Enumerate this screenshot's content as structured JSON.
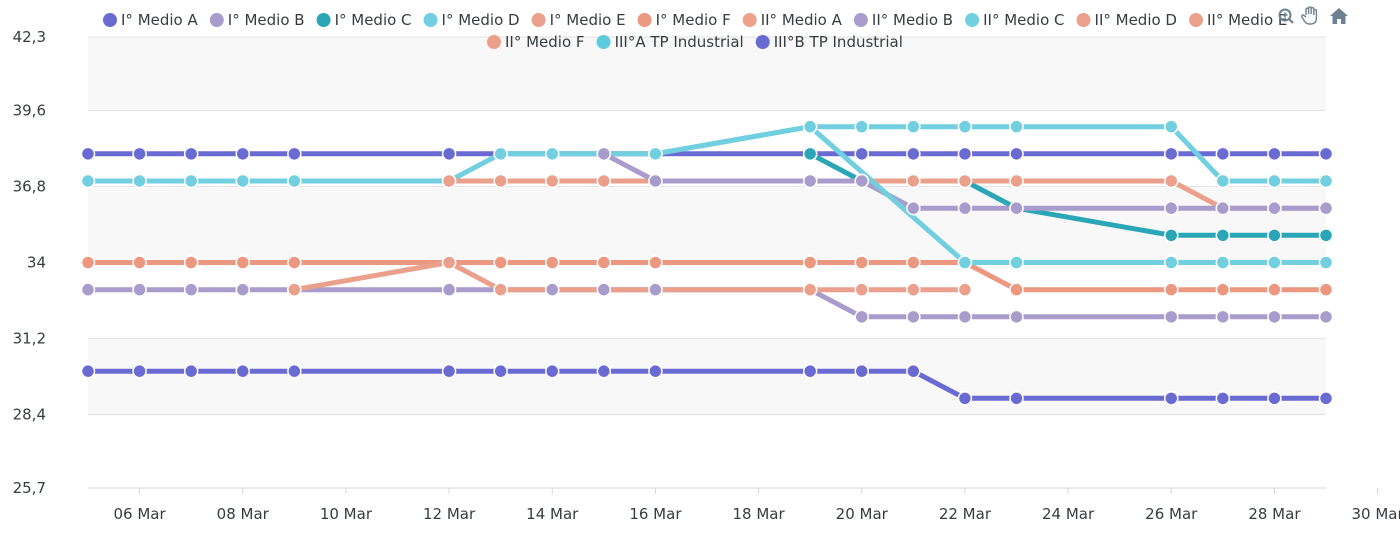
{
  "chart_data": {
    "type": "line",
    "ylim": [
      25.7,
      42.3
    ],
    "y_ticks": [
      "42,3",
      "39,6",
      "36,8",
      "34",
      "31,2",
      "28,4",
      "25,7"
    ],
    "y_tick_values": [
      42.3,
      39.6,
      36.8,
      34.0,
      31.2,
      28.4,
      25.7
    ],
    "x_ticks": [
      "06 Mar",
      "08 Mar",
      "10 Mar",
      "12 Mar",
      "14 Mar",
      "16 Mar",
      "18 Mar",
      "20 Mar",
      "22 Mar",
      "24 Mar",
      "26 Mar",
      "28 Mar",
      "30 Mar"
    ],
    "x_tick_days": [
      6,
      8,
      10,
      12,
      14,
      16,
      18,
      20,
      22,
      24,
      26,
      28,
      30
    ],
    "x_range_days": [
      5,
      29
    ],
    "grid": "horizontal bands",
    "legend": "top",
    "series": [
      {
        "name": "I° Medio A",
        "color": "#6a6ad3",
        "points": [
          [
            5,
            38
          ],
          [
            6,
            38
          ],
          [
            7,
            38
          ],
          [
            8,
            38
          ],
          [
            9,
            38
          ],
          [
            12,
            38
          ],
          [
            13,
            38
          ],
          [
            14,
            38
          ],
          [
            15,
            38
          ],
          [
            16,
            38
          ],
          [
            19,
            38
          ],
          [
            20,
            38
          ],
          [
            21,
            38
          ],
          [
            22,
            38
          ],
          [
            23,
            38
          ],
          [
            26,
            38
          ],
          [
            27,
            38
          ],
          [
            28,
            38
          ],
          [
            29,
            38
          ]
        ]
      },
      {
        "name": "I° Medio B",
        "color": "#a89ccc",
        "points": [
          [
            5,
            33
          ],
          [
            6,
            33
          ],
          [
            7,
            33
          ],
          [
            8,
            33
          ],
          [
            9,
            33
          ],
          [
            12,
            33
          ],
          [
            13,
            33
          ],
          [
            14,
            33
          ],
          [
            15,
            33
          ],
          [
            16,
            33
          ],
          [
            19,
            33
          ],
          [
            20,
            32
          ],
          [
            21,
            32
          ],
          [
            22,
            32
          ],
          [
            23,
            32
          ],
          [
            26,
            32
          ],
          [
            27,
            32
          ],
          [
            28,
            32
          ],
          [
            29,
            32
          ]
        ]
      },
      {
        "name": "I° Medio C",
        "color": "#2aa6b6",
        "points": [
          [
            19,
            38
          ],
          [
            20,
            37
          ],
          [
            21,
            37
          ],
          [
            22,
            37
          ],
          [
            23,
            36
          ],
          [
            26,
            35
          ],
          [
            27,
            35
          ],
          [
            28,
            35
          ],
          [
            29,
            35
          ]
        ]
      },
      {
        "name": "I° Medio D",
        "color": "#71cfe0",
        "points": [
          [
            5,
            37
          ],
          [
            6,
            37
          ],
          [
            7,
            37
          ],
          [
            8,
            37
          ],
          [
            9,
            37
          ],
          [
            12,
            37
          ],
          [
            13,
            38
          ],
          [
            14,
            38
          ],
          [
            15,
            38
          ],
          [
            16,
            38
          ],
          [
            19,
            39
          ],
          [
            20,
            39
          ],
          [
            21,
            39
          ],
          [
            22,
            39
          ],
          [
            23,
            39
          ],
          [
            26,
            39
          ],
          [
            27,
            37
          ],
          [
            28,
            37
          ],
          [
            29,
            37
          ]
        ]
      },
      {
        "name": "I° Medio E",
        "color": "#eba08c",
        "points": [
          [
            12,
            37
          ],
          [
            13,
            37
          ],
          [
            14,
            37
          ],
          [
            15,
            37
          ],
          [
            16,
            37
          ],
          [
            19,
            37
          ],
          [
            20,
            37
          ],
          [
            21,
            37
          ],
          [
            22,
            37
          ],
          [
            23,
            37
          ],
          [
            26,
            37
          ],
          [
            27,
            36
          ],
          [
            28,
            36
          ],
          [
            29,
            36
          ]
        ]
      },
      {
        "name": "I° Medio F",
        "color": "#ec9880",
        "points": [
          [
            5,
            34
          ],
          [
            6,
            34
          ],
          [
            7,
            34
          ],
          [
            8,
            34
          ],
          [
            9,
            34
          ],
          [
            12,
            34
          ],
          [
            13,
            34
          ],
          [
            14,
            34
          ],
          [
            15,
            34
          ],
          [
            16,
            34
          ],
          [
            19,
            34
          ],
          [
            20,
            34
          ],
          [
            21,
            34
          ],
          [
            22,
            34
          ],
          [
            23,
            33
          ],
          [
            26,
            33
          ],
          [
            27,
            33
          ],
          [
            28,
            33
          ],
          [
            29,
            33
          ]
        ]
      },
      {
        "name": "II° Medio A",
        "color": "#eba08c",
        "points": [
          [
            9,
            33
          ],
          [
            12,
            34
          ],
          [
            13,
            33
          ],
          [
            19,
            33
          ],
          [
            20,
            33
          ],
          [
            21,
            33
          ],
          [
            22,
            33
          ]
        ]
      },
      {
        "name": "II° Medio B",
        "color": "#a89ccc",
        "points": [
          [
            15,
            38
          ],
          [
            16,
            37
          ],
          [
            19,
            37
          ],
          [
            20,
            37
          ],
          [
            21,
            36
          ],
          [
            22,
            36
          ],
          [
            23,
            36
          ],
          [
            26,
            36
          ],
          [
            27,
            36
          ],
          [
            28,
            36
          ],
          [
            29,
            36
          ]
        ]
      },
      {
        "name": "II° Medio C",
        "color": "#71cfe0",
        "points": [
          [
            16,
            38
          ],
          [
            19,
            39
          ],
          [
            22,
            34
          ],
          [
            23,
            34
          ],
          [
            26,
            34
          ],
          [
            27,
            34
          ],
          [
            28,
            34
          ],
          [
            29,
            34
          ]
        ]
      },
      {
        "name": "II° Medio D",
        "color": "#eba08c",
        "points": []
      },
      {
        "name": "II° Medio E",
        "color": "#eba08c",
        "points": []
      },
      {
        "name": "II° Medio F",
        "color": "#eba08c",
        "points": []
      },
      {
        "name": "III°A TP Industrial",
        "color": "#5ccbdb",
        "points": []
      },
      {
        "name": "III°B TP Industrial",
        "color": "#6a6ad3",
        "points": [
          [
            5,
            30
          ],
          [
            6,
            30
          ],
          [
            7,
            30
          ],
          [
            8,
            30
          ],
          [
            9,
            30
          ],
          [
            12,
            30
          ],
          [
            13,
            30
          ],
          [
            14,
            30
          ],
          [
            15,
            30
          ],
          [
            16,
            30
          ],
          [
            19,
            30
          ],
          [
            20,
            30
          ],
          [
            21,
            30
          ],
          [
            22,
            29
          ],
          [
            23,
            29
          ],
          [
            26,
            29
          ],
          [
            27,
            29
          ],
          [
            28,
            29
          ],
          [
            29,
            29
          ]
        ]
      }
    ]
  },
  "legend_row1": [
    "I° Medio A",
    "I° Medio B",
    "I° Medio C",
    "I° Medio D",
    "I° Medio E",
    "I° Medio F",
    "II° Medio A",
    "II° Medio B",
    "II° Medio C",
    "II° Medio D",
    "II° Medio E"
  ],
  "legend_row2": [
    "II° Medio F",
    "III°A TP Industrial",
    "III°B TP Industrial"
  ],
  "toolbar": [
    "zoom-in-icon",
    "pan-hand-icon",
    "home-icon"
  ]
}
